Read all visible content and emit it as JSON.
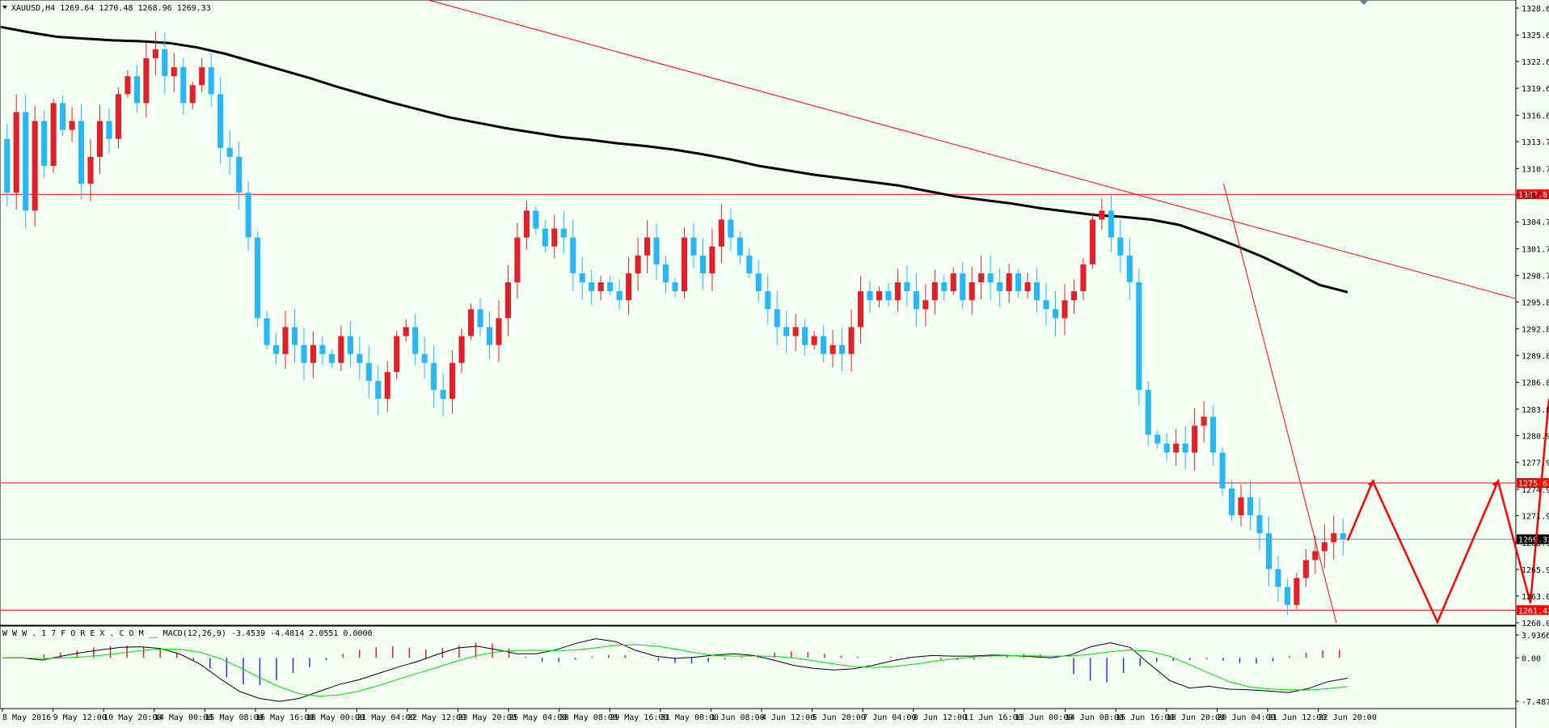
{
  "symbol_header": "XAUUSD,H4  1269.64 1270.48 1268.96 1269.33",
  "macd_header": "W W W . 1 7 F O R E X . C O M __ MACD(12,26,9) -3.4539 -4.4814 2.0551 0.0000",
  "colors": {
    "background": "#f4fff4",
    "bull": "#e0202a",
    "bear": "#29b6f6",
    "ma": "#000000",
    "lines": "#ff0000",
    "macd_pos": "#e0202a",
    "macd_neg": "#3030e0",
    "macd_line": "#000000",
    "signal_line": "#00dd00"
  },
  "chart_data": [
    {
      "type": "candlestick",
      "title": "XAUUSD,H4",
      "ylim": [
        1260.0,
        1328.6
      ],
      "y_ticks": [
        "1328.60",
        "1325.60",
        "1322.65",
        "1319.65",
        "1316.65",
        "1313.70",
        "1310.70",
        "1307.75",
        "1304.75",
        "1301.75",
        "1298.75",
        "1295.80",
        "1292.80",
        "1289.85",
        "1286.85",
        "1283.85",
        "1280.90",
        "1277.90",
        "1274.90",
        "1271.95",
        "1268.95",
        "1265.95",
        "1263.00",
        "1260.00"
      ],
      "x_labels": [
        "8 May 2016",
        "9 May 12:00",
        "10 May 20:00",
        "14 May 00:00",
        "15 May 08:00",
        "16 May 16:00",
        "18 May 00:00",
        "21 May 04:00",
        "22 May 12:00",
        "23 May 20:00",
        "25 May 04:00",
        "28 May 08:00",
        "29 May 16:00",
        "31 May 00:00",
        "1 Jun 08:00",
        "4 Jun 12:00",
        "5 Jun 20:00",
        "7 Jun 04:00",
        "8 Jun 12:00",
        "11 Jun 16:00",
        "13 Jun 00:00",
        "14 Jun 08:00",
        "15 Jun 16:00",
        "18 Jun 20:00",
        "20 Jun 04:00",
        "21 Jun 12:00",
        "22 Jun 20:00"
      ],
      "horizontal_levels": [
        {
          "value": 1307.82,
          "label": "1307.82"
        },
        {
          "value": 1275.61,
          "label": "1275.61"
        },
        {
          "value": 1261.42,
          "label": "1261.42"
        }
      ],
      "current_price": {
        "value": 1269.33,
        "label": "1269.33"
      },
      "ohlc_path": [
        1314,
        1308,
        1317,
        1306,
        1316,
        1311,
        1318,
        1315,
        1316,
        1309,
        1312,
        1316,
        1314,
        1319,
        1321,
        1318,
        1323,
        1324,
        1321,
        1322,
        1318,
        1320,
        1322,
        1319,
        1313,
        1312,
        1308,
        1303,
        1294,
        1291,
        1290,
        1293,
        1291,
        1289,
        1291,
        1290,
        1289,
        1292,
        1290,
        1289,
        1287,
        1285,
        1288,
        1292,
        1293,
        1290,
        1289,
        1286,
        1285,
        1289,
        1292,
        1295,
        1293,
        1291,
        1294,
        1298,
        1303,
        1306,
        1304,
        1302,
        1304,
        1303,
        1299,
        1298,
        1297,
        1298,
        1297,
        1296,
        1299,
        1301,
        1303,
        1300,
        1298,
        1297,
        1303,
        1301,
        1299,
        1302,
        1305,
        1303,
        1301,
        1299,
        1297,
        1295,
        1293,
        1292,
        1293,
        1291,
        1292,
        1290,
        1291,
        1290,
        1293,
        1297,
        1296,
        1297,
        1296,
        1298,
        1297,
        1295,
        1296,
        1298,
        1297,
        1299,
        1296,
        1298,
        1299,
        1298,
        1297,
        1299,
        1297,
        1298,
        1296,
        1295,
        1294,
        1296,
        1297,
        1300,
        1305,
        1306,
        1303,
        1301,
        1298,
        1286,
        1281,
        1280,
        1279,
        1280,
        1279,
        1282,
        1283,
        1279,
        1275,
        1272,
        1274,
        1272,
        1270,
        1266,
        1264,
        1262,
        1265,
        1267,
        1268,
        1269,
        1270,
        1269.33
      ],
      "ma_path": [
        1326.5,
        1325.9,
        1325.4,
        1325.2,
        1325.0,
        1324.9,
        1324.7,
        1324.2,
        1323.5,
        1322.6,
        1321.7,
        1320.8,
        1319.8,
        1318.9,
        1318.0,
        1317.2,
        1316.4,
        1315.8,
        1315.2,
        1314.7,
        1314.2,
        1313.9,
        1313.5,
        1313.2,
        1312.8,
        1312.3,
        1311.7,
        1311.0,
        1310.5,
        1310.0,
        1309.6,
        1309.2,
        1308.8,
        1308.2,
        1307.6,
        1307.2,
        1306.8,
        1306.3,
        1305.9,
        1305.5,
        1305.3,
        1305.0,
        1304.4,
        1303.3,
        1302.1,
        1300.8,
        1299.3,
        1297.7,
        1296.9
      ],
      "annotations": [
        {
          "type": "trendline",
          "from": [
            "(top edge)",
            1328.6
          ],
          "to": [
            "right edge",
            1296.2
          ]
        },
        {
          "type": "trendline",
          "from": [
            "14 Jun 08:00",
            1309.0
          ],
          "to": [
            "21 Jun 12:00",
            1260.0
          ]
        },
        {
          "type": "projection",
          "points": [
            1269.2,
            1275.8,
            1260.1,
            1275.8,
            1262.2,
            1285.0
          ]
        }
      ]
    },
    {
      "type": "macd",
      "title": "MACD(12,26,9)",
      "params": "12,26,9",
      "values": {
        "macd": -3.4539,
        "signal": -4.4814,
        "histogram": 2.0551,
        "extra": 0.0
      },
      "ylim": [
        -7.4873,
        3.9366
      ],
      "y_ticks": [
        "3.9366",
        "0.00",
        "-7.4873"
      ],
      "histogram": [
        0,
        0,
        0.6,
        0.9,
        1.3,
        1.8,
        2.0,
        2.1,
        1.9,
        1.5,
        0.8,
        -0.4,
        -1.8,
        -3.4,
        -4.6,
        -4.7,
        -3.8,
        -2.6,
        -1.6,
        -0.4,
        0.7,
        1.4,
        1.8,
        2.0,
        1.7,
        1.4,
        1.7,
        2.1,
        2.6,
        2.5,
        1.6,
        0.2,
        -0.7,
        -0.7,
        -0.3,
        0.2,
        0.5,
        0.5,
        0.1,
        -0.5,
        -0.9,
        -1.0,
        -0.7,
        -0.3,
        0.2,
        0.5,
        0.9,
        1.1,
        1.0,
        0.7,
        0.4,
        0.2,
        0.1,
        0.2,
        0.1,
        -0.1,
        -0.3,
        -0.4,
        -0.3,
        0.1,
        0.5,
        0.7,
        0.6,
        0.1,
        -2.8,
        -3.9,
        -4.2,
        -2.6,
        -1.4,
        -0.7,
        -0.5,
        -0.4,
        -0.2,
        -0.5,
        -0.9,
        -1.0,
        -0.6,
        0.3,
        0.9,
        1.3,
        1.4
      ],
      "macd_line": [
        0,
        0,
        -0.4,
        0.3,
        0.9,
        1.4,
        1.8,
        1.9,
        1.6,
        0.6,
        -1.1,
        -3.6,
        -5.8,
        -7.0,
        -7.5,
        -7.0,
        -5.8,
        -4.6,
        -3.8,
        -2.7,
        -1.6,
        -0.6,
        0.6,
        1.7,
        2.0,
        1.4,
        0.7,
        0.7,
        1.4,
        2.5,
        3.3,
        2.8,
        1.3,
        0.3,
        -0.1,
        0.1,
        0.5,
        0.7,
        0.4,
        -0.4,
        -1.3,
        -1.8,
        -2.1,
        -1.9,
        -1.3,
        -0.5,
        0.1,
        0.4,
        0.3,
        0.3,
        0.5,
        0.4,
        0.2,
        0.0,
        0.5,
        1.9,
        2.6,
        1.8,
        -1.1,
        -3.9,
        -5.2,
        -4.9,
        -5.4,
        -5.5,
        -5.7,
        -6.0,
        -5.3,
        -4.1,
        -3.5
      ]
    }
  ]
}
